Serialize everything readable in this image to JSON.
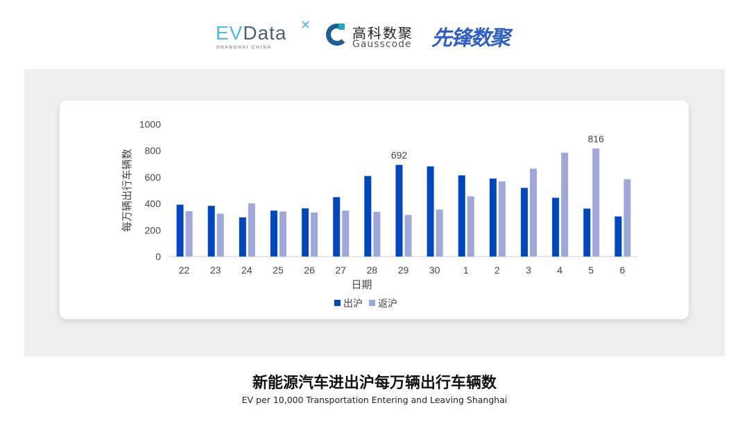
{
  "logos": {
    "evdata": "EVData",
    "evdata_sub": "SHANGHAI CHINA",
    "gausscode_cn": "高科数聚",
    "gausscode_en": "Gausscode",
    "xianfeng": "先锋数聚"
  },
  "title": "新能源汽车进出沪每万辆出行车辆数",
  "subtitle": "EV per 10,000 Transportation Entering and Leaving Shanghai",
  "chart_data": {
    "type": "bar",
    "xlabel": "日期",
    "ylabel": "每万辆出行车辆数",
    "ylim": [
      0,
      1000
    ],
    "yticks": [
      0,
      200,
      400,
      600,
      800,
      1000
    ],
    "grid": false,
    "legend": "bottom",
    "categories": [
      "22",
      "23",
      "24",
      "25",
      "26",
      "27",
      "28",
      "29",
      "30",
      "1",
      "2",
      "3",
      "4",
      "5",
      "6"
    ],
    "series": [
      {
        "name": "出沪",
        "color": "#0047bb",
        "values": [
          392,
          383,
          296,
          347,
          364,
          449,
          608,
          692,
          681,
          613,
          589,
          519,
          444,
          362,
          303
        ]
      },
      {
        "name": "返沪",
        "color": "#9fa9d9",
        "values": [
          343,
          324,
          402,
          340,
          333,
          347,
          338,
          314,
          355,
          455,
          568,
          664,
          784,
          816,
          584
        ]
      }
    ],
    "annotations": [
      {
        "series": "出沪",
        "category": "29",
        "text": "692"
      },
      {
        "series": "返沪",
        "category": "5",
        "text": "816"
      }
    ]
  }
}
